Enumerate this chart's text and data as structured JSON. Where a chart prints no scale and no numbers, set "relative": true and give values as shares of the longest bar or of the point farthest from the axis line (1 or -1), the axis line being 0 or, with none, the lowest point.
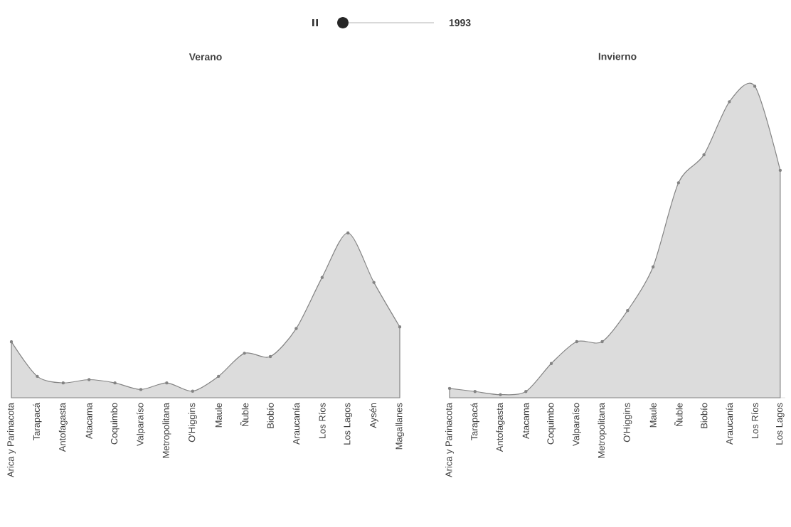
{
  "chart_data": [
    {
      "type": "area",
      "title": "Verano",
      "relative": true,
      "marker": "circle",
      "tick_labels": "x",
      "annotations": [
        "1993"
      ],
      "categories": [
        "Arica y Parinacota",
        "Tarapacá",
        "Antofagasta",
        "Atacama",
        "Coquimbo",
        "Valparaíso",
        "Metropolitana",
        "O'Higgins",
        "Maule",
        "Ñuble",
        "Biobío",
        "Araucanía",
        "Los Ríos",
        "Los Lagos",
        "Aysén",
        "Magallanes"
      ],
      "series": [
        {
          "color": "#dcdcdc",
          "values": [
            0.34,
            0.13,
            0.09,
            0.11,
            0.09,
            0.05,
            0.09,
            0.04,
            0.13,
            0.27,
            0.25,
            0.42,
            0.73,
            1,
            0.7,
            0.43
          ]
        }
      ]
    },
    {
      "type": "area",
      "title": "Invierno",
      "relative": true,
      "marker": "circle",
      "tick_labels": "x",
      "categories": [
        "Arica y Parinacota",
        "Tarapacá",
        "Antofagasta",
        "Atacama",
        "Coquimbo",
        "Valparaíso",
        "Metropolitana",
        "O'Higgins",
        "Maule",
        "Ñuble",
        "Biobío",
        "Araucanía",
        "Los Ríos",
        "Los Lagos"
      ],
      "series": [
        {
          "color": "#dcdcdc",
          "values": [
            0.03,
            0.02,
            0.01,
            0.02,
            0.11,
            0.18,
            0.18,
            0.28,
            0.42,
            0.69,
            0.78,
            0.95,
            1,
            0.73
          ]
        }
      ]
    }
  ]
}
